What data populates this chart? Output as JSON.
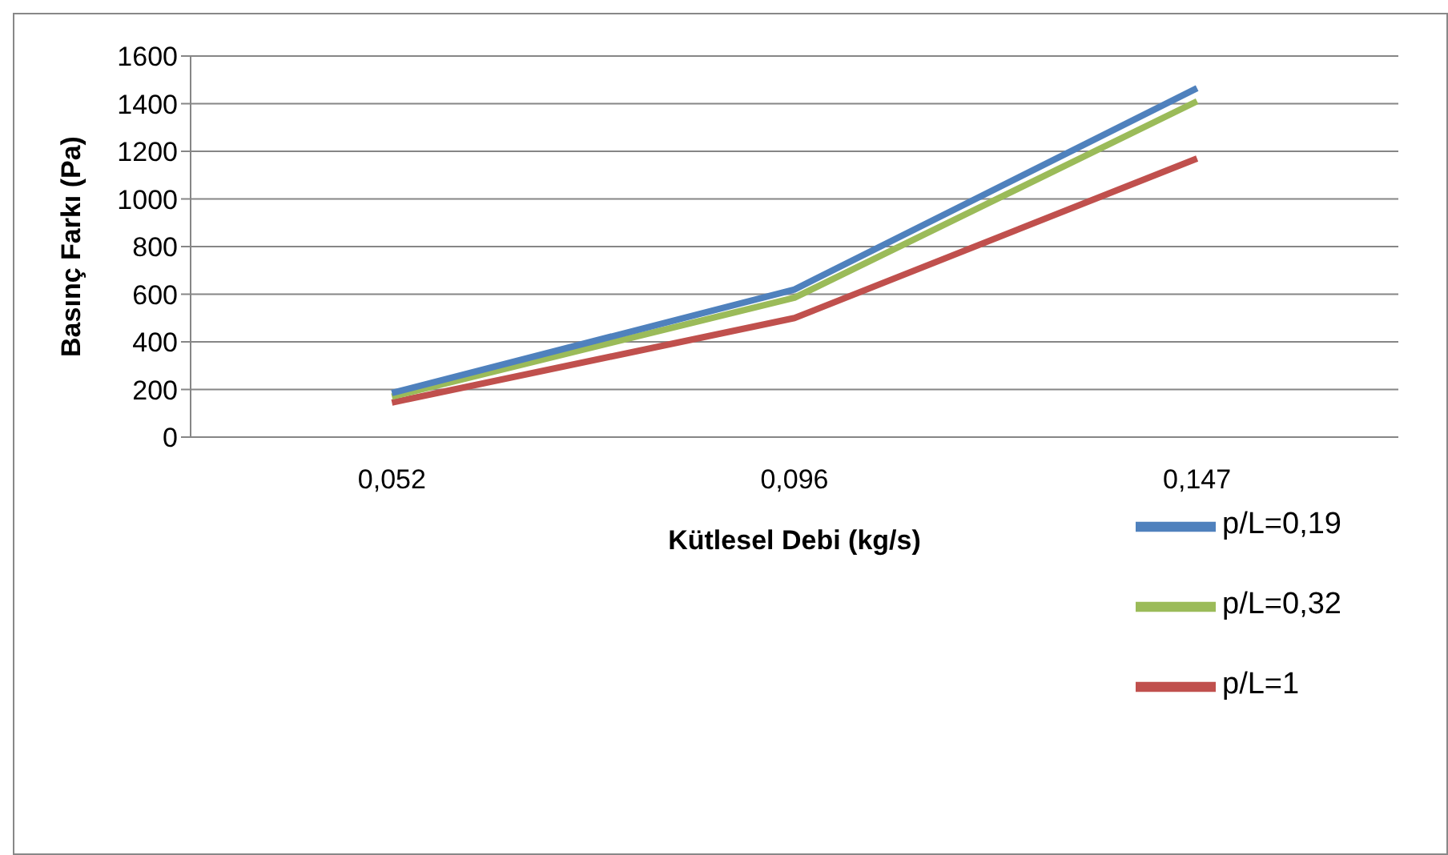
{
  "chart_data": {
    "type": "line",
    "xlabel": "Kütlesel Debi (kg/s)",
    "ylabel": "Basınç Farkı (Pa)",
    "categories": [
      "0,052",
      "0,096",
      "0,147"
    ],
    "ylim": [
      0,
      1600
    ],
    "yticks": [
      0,
      200,
      400,
      600,
      800,
      1000,
      1200,
      1400,
      1600
    ],
    "grid": "y",
    "legend": "right",
    "marker": "none",
    "line_style": "solid",
    "series": [
      {
        "name": "p/L=1",
        "color": "#c0504d",
        "values": [
          145,
          500,
          1170
        ]
      },
      {
        "name": "p/L=0,32",
        "color": "#9bbb59",
        "values": [
          170,
          585,
          1410
        ]
      },
      {
        "name": "p/L=0,19",
        "color": "#4f81bd",
        "values": [
          185,
          620,
          1465
        ]
      }
    ]
  }
}
